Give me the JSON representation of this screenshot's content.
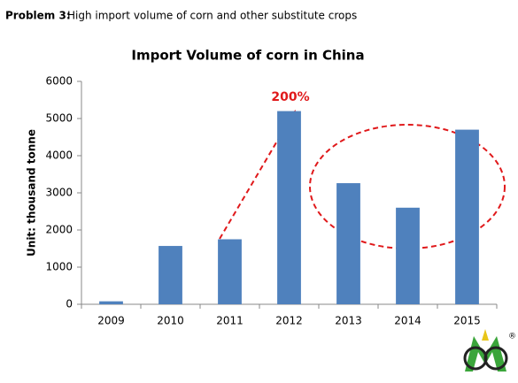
{
  "header": {
    "label": "Problem 3:",
    "text": "High import volume of corn and other substitute crops"
  },
  "chart_data": {
    "type": "bar",
    "title": "Import Volume of corn in China",
    "y_label": "Unit: thousand tonne",
    "categories": [
      "2009",
      "2010",
      "2011",
      "2012",
      "2013",
      "2014",
      "2015"
    ],
    "values": [
      80,
      1570,
      1750,
      5200,
      3260,
      2600,
      4700
    ],
    "color": "#4f81bd",
    "ylim": [
      0,
      6000
    ],
    "yticks": [
      0,
      1000,
      2000,
      3000,
      4000,
      5000,
      6000
    ],
    "grid": false,
    "annotation": "200%"
  },
  "logo": {
    "mark": "®"
  }
}
